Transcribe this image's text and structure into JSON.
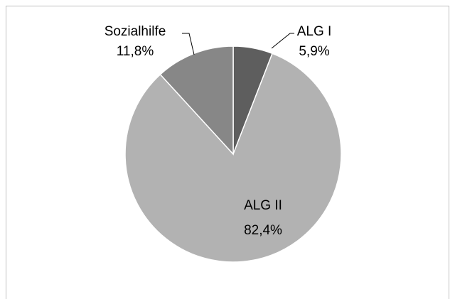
{
  "chart_data": {
    "type": "pie",
    "categories": [
      "ALG I",
      "ALG II",
      "Sozialhilfe"
    ],
    "values": [
      5.9,
      82.4,
      11.8
    ],
    "value_labels": [
      "5,9%",
      "82,4%",
      "11,8%"
    ],
    "colors": [
      "#5e5e5e",
      "#b2b2b2",
      "#878787"
    ]
  }
}
